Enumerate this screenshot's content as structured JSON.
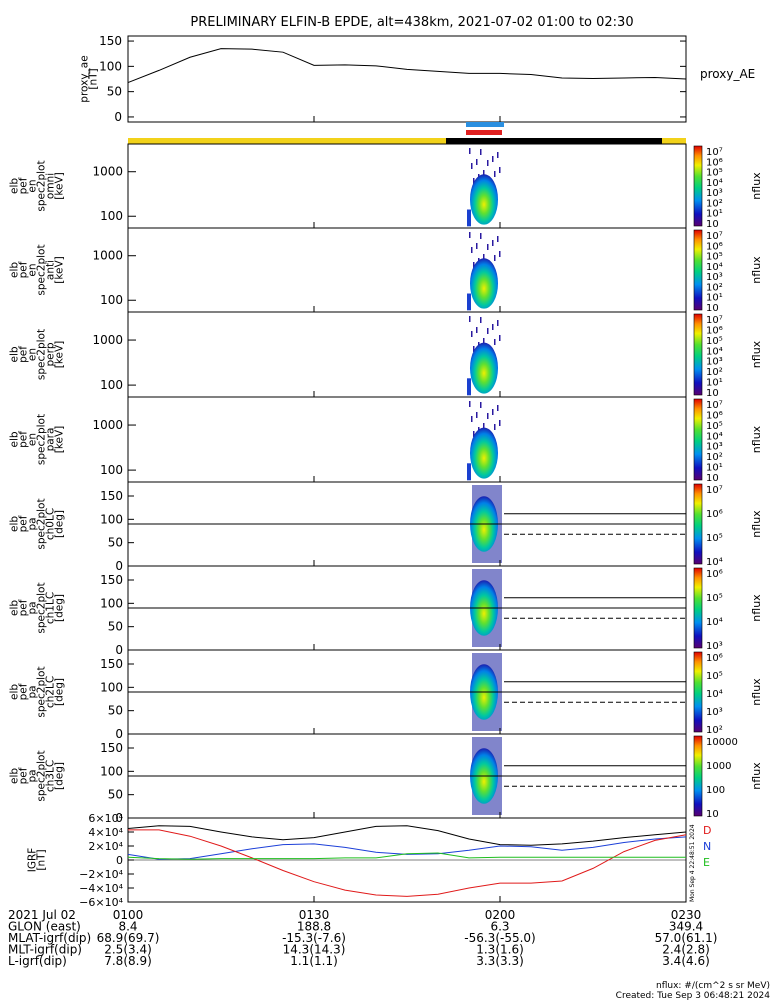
{
  "title": "PRELIMINARY ELFIN-B EPDE, alt=438km, 2021-07-02 01:00 to 02:30",
  "colors": {
    "bar_yellow": "#f2d21a",
    "bar_black": "#000000",
    "mark_blue": "#2a8fe0",
    "mark_red": "#e02020",
    "geo_x": "#000000",
    "geo_y": "#1c3fd8",
    "geo_z": "#e01a1a",
    "geo_w": "#1fbe1f"
  },
  "chart_data": [
    {
      "type": "line",
      "panel": "proxy_ae",
      "ylabel": [
        "proxy_ae",
        "[nT]"
      ],
      "right_label": "proxy_AE",
      "ylim": [
        -10,
        160
      ],
      "yticks": [
        "150",
        "100",
        "50",
        "0"
      ],
      "x_minutes": [
        0,
        5,
        10,
        15,
        20,
        25,
        30,
        35,
        40,
        45,
        50,
        55,
        60,
        65,
        70,
        75,
        80,
        85,
        90
      ],
      "values": [
        68,
        92,
        118,
        135,
        134,
        128,
        102,
        103,
        101,
        94,
        90,
        86,
        86,
        84,
        77,
        76,
        77,
        78,
        75
      ]
    },
    {
      "type": "heatmap",
      "panel": "en_omni",
      "ylabel": [
        "elb",
        "pef",
        "en",
        "spec2plot",
        "omni",
        "[keV]"
      ],
      "yticks": [
        "1000",
        "100"
      ],
      "colorbar": {
        "label": "nflux",
        "ticks": [
          "10⁷",
          "10⁶",
          "10⁵",
          "10⁴",
          "10³",
          "10²",
          "10¹",
          "10"
        ]
      }
    },
    {
      "type": "heatmap",
      "panel": "en_anti",
      "ylabel": [
        "elb",
        "pef",
        "en",
        "spec2plot",
        "anti",
        "[keV]"
      ],
      "yticks": [
        "1000",
        "100"
      ],
      "colorbar": {
        "label": "nflux",
        "ticks": [
          "10⁷",
          "10⁶",
          "10⁵",
          "10⁴",
          "10³",
          "10²",
          "10¹",
          "10"
        ]
      }
    },
    {
      "type": "heatmap",
      "panel": "en_perp",
      "ylabel": [
        "elb",
        "pef",
        "en",
        "spec2plot",
        "perp",
        "[keV]"
      ],
      "yticks": [
        "1000",
        "100"
      ],
      "colorbar": {
        "label": "nflux",
        "ticks": [
          "10⁷",
          "10⁶",
          "10⁵",
          "10⁴",
          "10³",
          "10²",
          "10¹",
          "10"
        ]
      }
    },
    {
      "type": "heatmap",
      "panel": "en_para",
      "ylabel": [
        "elb",
        "pef",
        "en",
        "spec2plot",
        "para",
        "[keV]"
      ],
      "yticks": [
        "1000",
        "100"
      ],
      "colorbar": {
        "label": "nflux",
        "ticks": [
          "10⁷",
          "10⁶",
          "10⁵",
          "10⁴",
          "10³",
          "10²",
          "10¹",
          "10"
        ]
      }
    },
    {
      "type": "heatmap",
      "panel": "pa_ch0",
      "ylabel": [
        "elb",
        "pef",
        "pa",
        "spec2plot",
        "ch0LC",
        "[deg]"
      ],
      "yticks": [
        "150",
        "100",
        "50",
        "0"
      ],
      "colorbar": {
        "label": "nflux",
        "ticks": [
          "10⁷",
          "10⁶",
          "10⁵",
          "10⁴"
        ]
      }
    },
    {
      "type": "heatmap",
      "panel": "pa_ch1",
      "ylabel": [
        "elb",
        "pef",
        "pa",
        "spec2plot",
        "ch1LC",
        "[deg]"
      ],
      "yticks": [
        "150",
        "100",
        "50",
        "0"
      ],
      "colorbar": {
        "label": "nflux",
        "ticks": [
          "10⁶",
          "10⁵",
          "10⁴",
          "10³"
        ]
      }
    },
    {
      "type": "heatmap",
      "panel": "pa_ch2",
      "ylabel": [
        "elb",
        "pef",
        "pa",
        "spec2plot",
        "ch2LC",
        "[deg]"
      ],
      "yticks": [
        "150",
        "100",
        "50",
        "0"
      ],
      "colorbar": {
        "label": "nflux",
        "ticks": [
          "10⁶",
          "10⁵",
          "10⁴",
          "10³",
          "10²"
        ]
      }
    },
    {
      "type": "heatmap",
      "panel": "pa_ch3",
      "ylabel": [
        "elb",
        "pef",
        "pa",
        "spec2plot",
        "ch3LC",
        "[deg]"
      ],
      "yticks": [
        "150",
        "100",
        "50",
        "0"
      ],
      "colorbar": {
        "label": "nflux",
        "ticks": [
          "10000",
          "1000",
          "100",
          "10"
        ]
      }
    },
    {
      "type": "line",
      "panel": "igrf",
      "ylabel": [
        "IGRF",
        "[nT]"
      ],
      "yticks": [
        "6×10⁴",
        "4×10⁴",
        "2×10⁴",
        "0",
        "−2×10⁴",
        "−4×10⁴",
        "−6×10⁴"
      ],
      "ylim": [
        -60000,
        60000
      ],
      "x_minutes": [
        0,
        5,
        10,
        15,
        20,
        25,
        30,
        35,
        40,
        45,
        50,
        55,
        60,
        65,
        70,
        75,
        80,
        85,
        90
      ],
      "series": [
        {
          "name": "D",
          "values": [
            45000,
            49000,
            48000,
            40000,
            33000,
            29000,
            32000,
            40000,
            48000,
            49000,
            42000,
            30000,
            22000,
            21000,
            23000,
            27000,
            32000,
            36000,
            40000
          ]
        },
        {
          "name": "N",
          "values": [
            8000,
            1000,
            2000,
            9000,
            16000,
            22000,
            23000,
            18000,
            11000,
            8000,
            9000,
            14000,
            20000,
            19000,
            14000,
            18000,
            25000,
            30000,
            33000
          ]
        },
        {
          "name": "E",
          "values": [
            43000,
            43000,
            34000,
            20000,
            3000,
            -15000,
            -31000,
            -43000,
            -50000,
            -52000,
            -49000,
            -40000,
            -33000,
            -33000,
            -30000,
            -12000,
            12000,
            28000,
            36000
          ]
        },
        {
          "values": [
            4000,
            2000,
            1000,
            2000,
            2000,
            2000,
            2000,
            3000,
            3000,
            9000,
            10000,
            3000,
            4000,
            4000,
            4000,
            4000,
            4000,
            4000,
            4000
          ]
        }
      ],
      "legend": [
        "D",
        "N",
        "E"
      ],
      "side_text": "Mon Sep  4 22:48:51 2024"
    }
  ],
  "xaxis": {
    "tick_labels": [
      "0100",
      "0130",
      "0200",
      "0230"
    ],
    "rows": [
      {
        "label": "2021 Jul 02",
        "values": [
          "0100",
          "0130",
          "0200",
          "0230"
        ]
      },
      {
        "label": "GLON (east)",
        "values": [
          "8.4",
          "188.8",
          "6.3",
          "349.4"
        ]
      },
      {
        "label": "MLAT-igrf(dip)",
        "values": [
          "68.9(69.7)",
          "-15.3(-7.6)",
          "-56.3(-55.0)",
          "57.0(61.1)"
        ]
      },
      {
        "label": "MLT-igrf(dip)",
        "values": [
          "2.5(3.4)",
          "14.3(14.3)",
          "1.3(1.6)",
          "2.4(2.8)"
        ]
      },
      {
        "label": "L-igrf(dip)",
        "values": [
          "7.8(8.9)",
          "1.1(1.1)",
          "3.3(3.3)",
          "3.4(4.6)"
        ]
      }
    ]
  },
  "footer": {
    "units": "nflux: #/(cm^2 s sr MeV)",
    "created": "Created: Tue Sep  3 06:48:21 2024"
  }
}
